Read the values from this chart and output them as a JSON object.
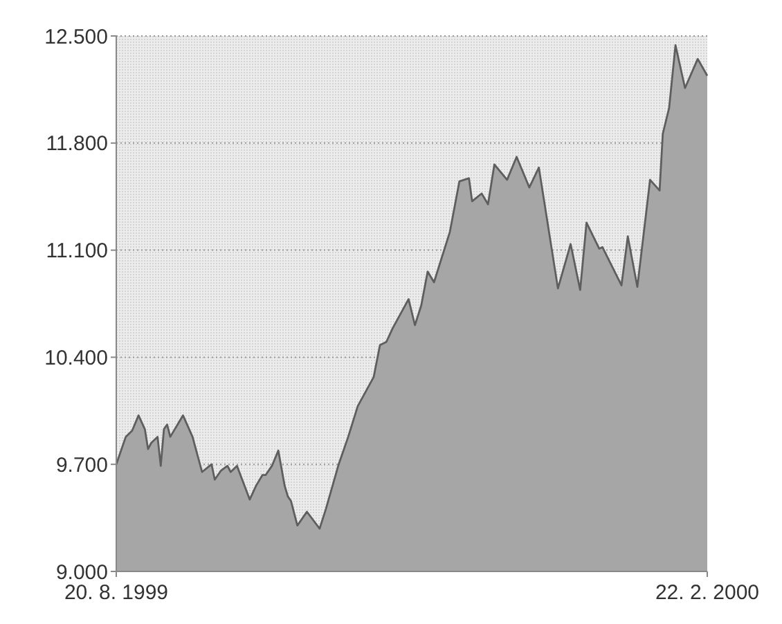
{
  "chart_data": {
    "type": "area",
    "x": [
      "1999-08-20",
      "1999-08-23",
      "1999-08-25",
      "1999-08-27",
      "1999-08-29",
      "1999-08-30",
      "1999-08-31",
      "1999-09-02",
      "1999-09-03",
      "1999-09-04",
      "1999-09-05",
      "1999-09-06",
      "1999-09-10",
      "1999-09-13",
      "1999-09-16",
      "1999-09-19",
      "1999-09-20",
      "1999-09-22",
      "1999-09-24",
      "1999-09-25",
      "1999-09-27",
      "1999-09-29",
      "1999-10-01",
      "1999-10-03",
      "1999-10-05",
      "1999-10-06",
      "1999-10-08",
      "1999-10-10",
      "1999-10-12",
      "1999-10-13",
      "1999-10-14",
      "1999-10-16",
      "1999-10-19",
      "1999-10-23",
      "1999-10-25",
      "1999-10-29",
      "1999-11-01",
      "1999-11-04",
      "1999-11-09",
      "1999-11-11",
      "1999-11-13",
      "1999-11-15",
      "1999-11-20",
      "1999-11-22",
      "1999-11-24",
      "1999-11-26",
      "1999-11-28",
      "1999-12-03",
      "1999-12-06",
      "1999-12-09",
      "1999-12-10",
      "1999-12-13",
      "1999-12-15",
      "1999-12-17",
      "1999-12-21",
      "1999-12-24",
      "1999-12-28",
      "1999-12-31",
      "2000-01-06",
      "2000-01-10",
      "2000-01-13",
      "2000-01-15",
      "2000-01-19",
      "2000-01-20",
      "2000-01-26",
      "2000-01-28",
      "2000-01-31",
      "2000-02-04",
      "2000-02-07",
      "2000-02-08",
      "2000-02-10",
      "2000-02-12",
      "2000-02-15",
      "2000-02-19",
      "2000-02-22"
    ],
    "series": [
      {
        "color": "#a6a6a6",
        "values": [
          9700,
          9880,
          9920,
          10020,
          9930,
          9800,
          9840,
          9880,
          9690,
          9930,
          9960,
          9880,
          10020,
          9880,
          9650,
          9700,
          9600,
          9660,
          9690,
          9650,
          9690,
          9580,
          9470,
          9560,
          9630,
          9630,
          9690,
          9790,
          9560,
          9490,
          9460,
          9300,
          9390,
          9280,
          9410,
          9700,
          9880,
          10080,
          10270,
          10480,
          10500,
          10590,
          10780,
          10610,
          10740,
          10960,
          10890,
          11220,
          11550,
          11570,
          11420,
          11470,
          11400,
          11660,
          11560,
          11710,
          11510,
          11640,
          10850,
          11140,
          10840,
          11280,
          11110,
          11120,
          10870,
          11190,
          10860,
          11560,
          11490,
          11860,
          12030,
          12440,
          12160,
          12350,
          12240
        ]
      }
    ],
    "xlim": [
      "1999-08-20",
      "2000-02-22"
    ],
    "xticks": [
      {
        "value": "1999-08-20",
        "label": "20. 8. 1999"
      },
      {
        "value": "2000-02-22",
        "label": "22. 2. 2000"
      }
    ],
    "ylim": [
      9000,
      12500
    ],
    "yticks": [
      {
        "value": 9000,
        "label": "9.000"
      },
      {
        "value": 9700,
        "label": "9.700"
      },
      {
        "value": 10400,
        "label": "10.400"
      },
      {
        "value": 11100,
        "label": "11.100"
      },
      {
        "value": 11800,
        "label": "11.800"
      },
      {
        "value": 12500,
        "label": "12.500"
      }
    ],
    "grid": "y"
  }
}
